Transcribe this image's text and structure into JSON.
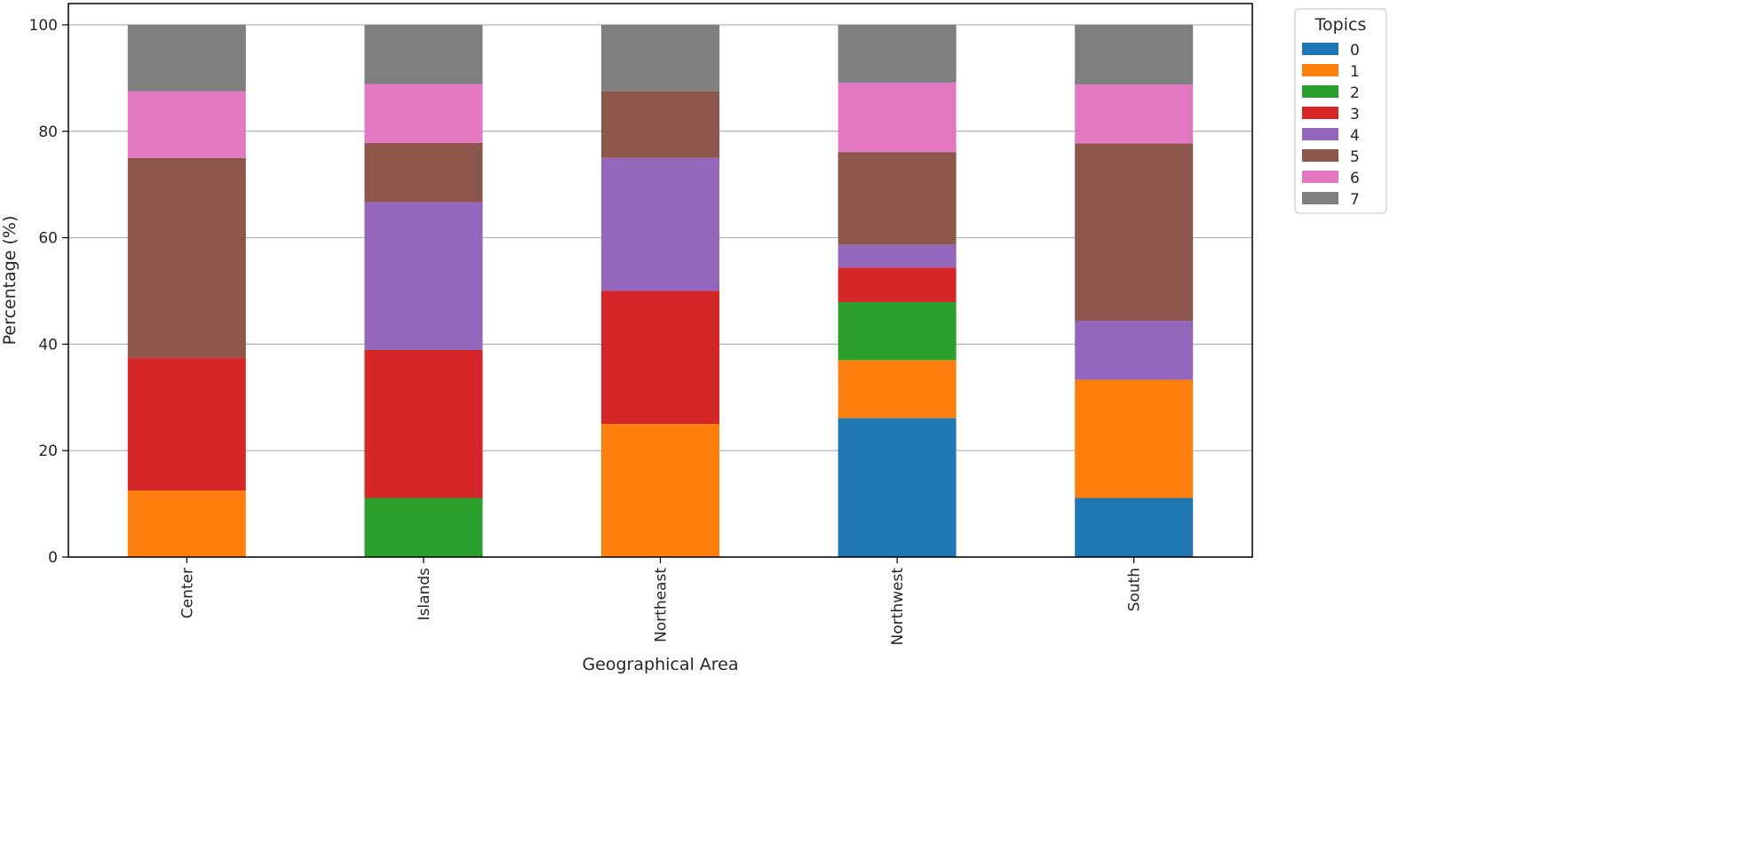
{
  "chart_data": {
    "type": "bar",
    "stacked": true,
    "title": "",
    "xlabel": "Geographical Area",
    "ylabel": "Percentage (%)",
    "ylim": [
      0,
      104
    ],
    "yticks": [
      0,
      20,
      40,
      60,
      80,
      100
    ],
    "grid": "y",
    "categories": [
      "Center",
      "Islands",
      "Northeast",
      "Northwest",
      "South"
    ],
    "legend": {
      "title": "Topics",
      "placement": "outside-top-right"
    },
    "series": [
      {
        "name": "0",
        "color": "#1f77b4",
        "values": [
          0,
          0,
          0,
          26.1,
          11.1
        ]
      },
      {
        "name": "1",
        "color": "#ff7f0e",
        "values": [
          12.5,
          0,
          25.0,
          10.9,
          22.2
        ]
      },
      {
        "name": "2",
        "color": "#2ca02c",
        "values": [
          0,
          11.1,
          0,
          10.9,
          0
        ]
      },
      {
        "name": "3",
        "color": "#d62728",
        "values": [
          25.0,
          27.8,
          25.0,
          6.5,
          0
        ]
      },
      {
        "name": "4",
        "color": "#9467bd",
        "values": [
          0,
          27.8,
          25.0,
          4.3,
          11.1
        ]
      },
      {
        "name": "5",
        "color": "#8c564b",
        "values": [
          37.5,
          11.1,
          12.5,
          17.4,
          33.3
        ]
      },
      {
        "name": "6",
        "color": "#e377c2",
        "values": [
          12.5,
          11.1,
          0,
          13.0,
          11.1
        ]
      },
      {
        "name": "7",
        "color": "#7f7f7f",
        "values": [
          12.5,
          11.1,
          12.5,
          10.9,
          11.2
        ]
      }
    ]
  }
}
